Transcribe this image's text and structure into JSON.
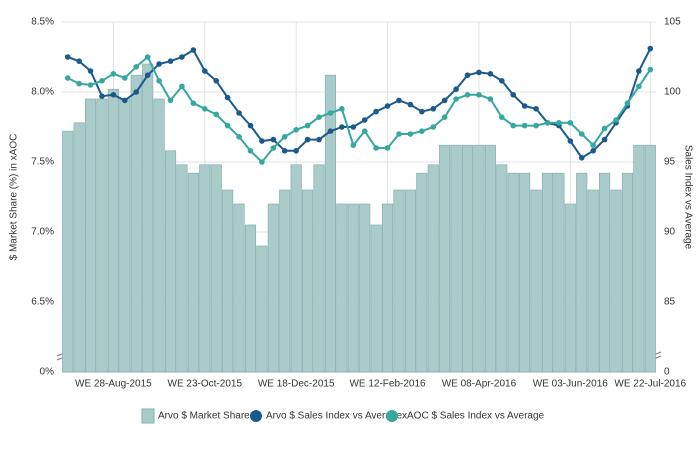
{
  "chart_data": {
    "type": "combo",
    "y_axis_label": "$ Market Share (%) in xAOC",
    "y2_axis_label": "Sales Index vs Average",
    "categories": [
      null,
      null,
      null,
      null,
      "WE 28-Aug-2015",
      null,
      null,
      null,
      null,
      null,
      null,
      null,
      "WE 23-Oct-2015",
      null,
      null,
      null,
      null,
      null,
      null,
      null,
      "WE 18-Dec-2015",
      null,
      null,
      null,
      null,
      null,
      null,
      null,
      "WE 12-Feb-2016",
      null,
      null,
      null,
      null,
      null,
      null,
      null,
      "WE 08-Apr-2016",
      null,
      null,
      null,
      null,
      null,
      null,
      null,
      "WE 03-Jun-2016",
      null,
      null,
      null,
      null,
      null,
      null,
      "WE 22-Jul-2016"
    ],
    "ylim": [
      0,
      8.5
    ],
    "yticks": [
      {
        "value": 0,
        "label": "0%"
      },
      {
        "value": 6.5,
        "label": "6.5%"
      },
      {
        "value": 7.0,
        "label": "7.0%"
      },
      {
        "value": 7.5,
        "label": "7.5%"
      },
      {
        "value": 8.0,
        "label": "8.0%"
      },
      {
        "value": 8.5,
        "label": "8.5%"
      }
    ],
    "y2lim": [
      0,
      105
    ],
    "y2ticks": [
      0,
      85,
      90,
      95,
      100,
      105
    ],
    "y_axis_break": true,
    "grid": true,
    "legend": "bottom",
    "series": [
      {
        "name": "Arvo $ Market Share",
        "type": "bar",
        "color": "#a9cccb",
        "values": [
          7.72,
          7.78,
          7.95,
          7.95,
          8.02,
          7.95,
          8.12,
          8.2,
          7.95,
          7.58,
          7.48,
          7.42,
          7.48,
          7.48,
          7.3,
          7.2,
          7.05,
          6.9,
          7.2,
          7.3,
          7.48,
          7.3,
          7.48,
          8.12,
          7.2,
          7.2,
          7.2,
          7.05,
          7.2,
          7.3,
          7.3,
          7.42,
          7.48,
          7.62,
          7.62,
          7.62,
          7.62,
          7.62,
          7.48,
          7.42,
          7.42,
          7.3,
          7.42,
          7.42,
          7.2,
          7.42,
          7.3,
          7.42,
          7.3,
          7.42,
          7.62,
          7.62
        ]
      },
      {
        "name": "Arvo $ Sales Index vs Average",
        "type": "line",
        "axis": "y2",
        "color": "#1b5a8c",
        "values": [
          102.5,
          102.2,
          101.5,
          99.7,
          99.8,
          99.4,
          100,
          101.2,
          102,
          102.2,
          102.5,
          103,
          101.5,
          100.8,
          99.6,
          98.5,
          97.6,
          96.5,
          96.6,
          95.8,
          95.8,
          96.6,
          96.6,
          97.2,
          97.5,
          97.5,
          98,
          98.6,
          99,
          99.4,
          99.1,
          98.6,
          98.8,
          99.4,
          100.2,
          101.2,
          101.4,
          101.3,
          100.8,
          99.8,
          99,
          98.8,
          97.8,
          97.6,
          96.5,
          95.3,
          95.8,
          96.6,
          97.8,
          99,
          101.5,
          103.1
        ]
      },
      {
        "name": "xAOC $ Sales Index vs Average",
        "type": "line",
        "axis": "y2",
        "color": "#36a89e",
        "values": [
          101,
          100.6,
          100.5,
          100.8,
          101.3,
          101,
          101.8,
          102.5,
          100.8,
          99.4,
          100.4,
          99.2,
          98.8,
          98.4,
          97.6,
          96.8,
          95.8,
          95,
          96,
          96.8,
          97.3,
          97.6,
          98.2,
          98.5,
          98.8,
          96.2,
          97.2,
          96,
          96,
          97,
          97,
          97.2,
          97.5,
          98.2,
          99.5,
          99.8,
          99.8,
          99.5,
          98.2,
          97.6,
          97.6,
          97.6,
          97.8,
          97.8,
          97.8,
          97,
          96.2,
          97.4,
          98,
          99.2,
          100.4,
          101.6
        ]
      }
    ]
  }
}
